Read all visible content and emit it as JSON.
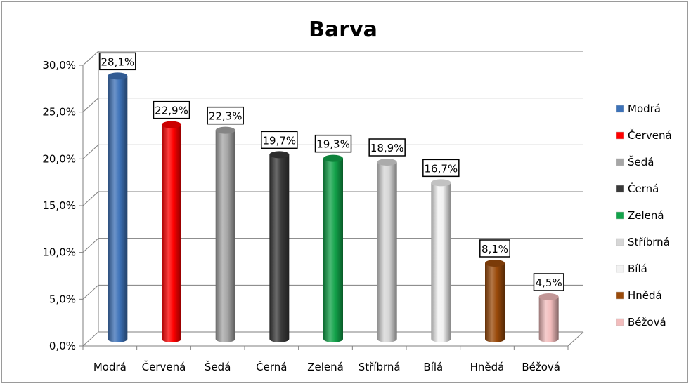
{
  "chart_data": {
    "type": "bar",
    "title": "Barva",
    "xlabel": "",
    "ylabel": "",
    "ylim": [
      0,
      30
    ],
    "ytick_values": [
      0,
      5,
      10,
      15,
      20,
      25,
      30
    ],
    "ytick_labels": [
      "0,0%",
      "5,0%",
      "10,0%",
      "15,0%",
      "20,0%",
      "25,0%",
      "30,0%"
    ],
    "grid": true,
    "legend_position": "right",
    "categories": [
      "Modrá",
      "Červená",
      "Šedá",
      "Černá",
      "Zelená",
      "Stříbrná",
      "Bílá",
      "Hnědá",
      "Béžová"
    ],
    "values": [
      28.1,
      22.9,
      22.3,
      19.7,
      19.3,
      18.9,
      16.7,
      8.1,
      4.5
    ],
    "value_labels": [
      "28,1%",
      "22,9%",
      "22,3%",
      "19,7%",
      "19,3%",
      "18,9%",
      "16,7%",
      "8,1%",
      "4,5%"
    ],
    "colors": [
      "#3d72b8",
      "#ff0000",
      "#a6a6a6",
      "#3a3a3a",
      "#12a34a",
      "#d6d6d6",
      "#f2f2f2",
      "#9a4a0a",
      "#f2bcbc"
    ],
    "legend": [
      "Modrá",
      "Červená",
      "Šedá",
      "Černá",
      "Zelená",
      "Stříbrná",
      "Bílá",
      "Hnědá",
      "Béžová"
    ]
  }
}
